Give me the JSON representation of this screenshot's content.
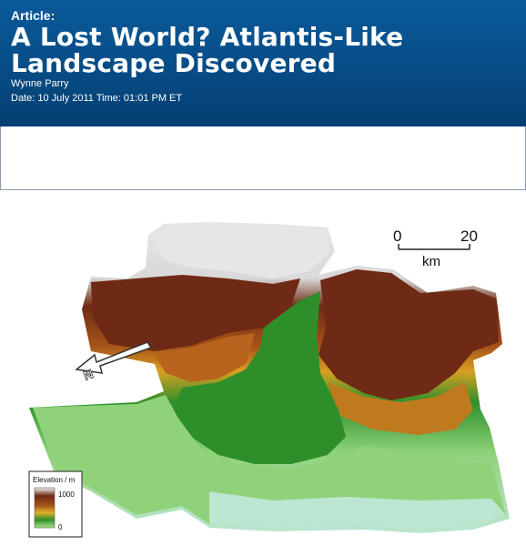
{
  "article": {
    "kicker": "Article:",
    "title_line1": "A Lost World? Atlantis-Like",
    "title_line2": "Landscape Discovered",
    "author": "Wynne Parry",
    "dateline": "Date: 10 July 2011 Time: 01:01 PM ET"
  },
  "figure": {
    "scale_bar": {
      "start": "0",
      "end": "20",
      "unit": "km"
    },
    "legend": {
      "title": "Elevation / m",
      "max": "1000",
      "min": "0"
    },
    "north_arrow_label": "N",
    "colors": {
      "snow": "#e6e6e6",
      "high": "#6e2a14",
      "mid_high": "#a65418",
      "mid": "#d8a022",
      "low_mid": "#2e8f2a",
      "low": "#8fd27a",
      "lowest": "#bde6d2"
    }
  }
}
